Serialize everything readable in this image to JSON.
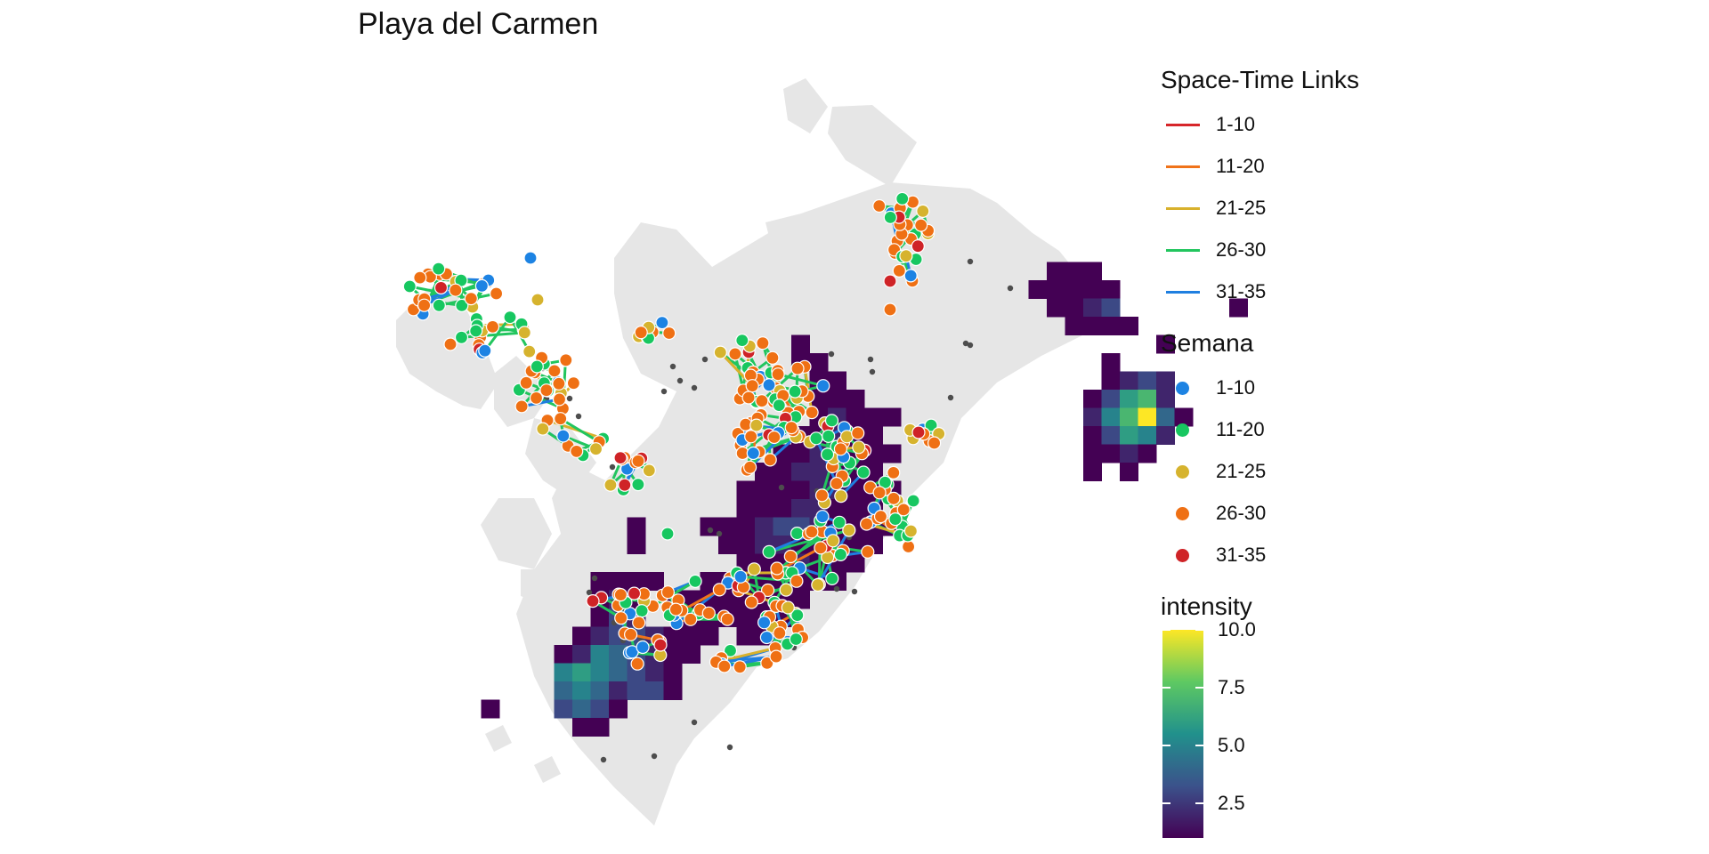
{
  "title": "Playa del Carmen",
  "legend": {
    "links": {
      "title": "Space-Time Links",
      "items": [
        {
          "label": "1-10",
          "color": "#d7262a"
        },
        {
          "label": "11-20",
          "color": "#f0731a"
        },
        {
          "label": "21-25",
          "color": "#d8b12c"
        },
        {
          "label": "26-30",
          "color": "#22c55e"
        },
        {
          "label": "31-35",
          "color": "#1f7fe0"
        }
      ]
    },
    "semana": {
      "title": "Semana",
      "items": [
        {
          "label": "1-10",
          "color": "#1d83e3"
        },
        {
          "label": "11-20",
          "color": "#17c760"
        },
        {
          "label": "21-25",
          "color": "#d6b32e"
        },
        {
          "label": "26-30",
          "color": "#ef7014"
        },
        {
          "label": "31-35",
          "color": "#cf2327"
        }
      ]
    },
    "intensity": {
      "title": "intensity",
      "ticks": [
        "10.0",
        "7.5",
        "5.0",
        "2.5"
      ],
      "tick_values": [
        10.0,
        7.5,
        5.0,
        2.5
      ],
      "range": [
        1,
        10
      ],
      "colors": [
        "#440154",
        "#3b528b",
        "#21918c",
        "#5ec962",
        "#fde725"
      ]
    }
  },
  "map": {
    "land_color": "#e6e6e6",
    "outlier_color": "#4d4d4d"
  }
}
